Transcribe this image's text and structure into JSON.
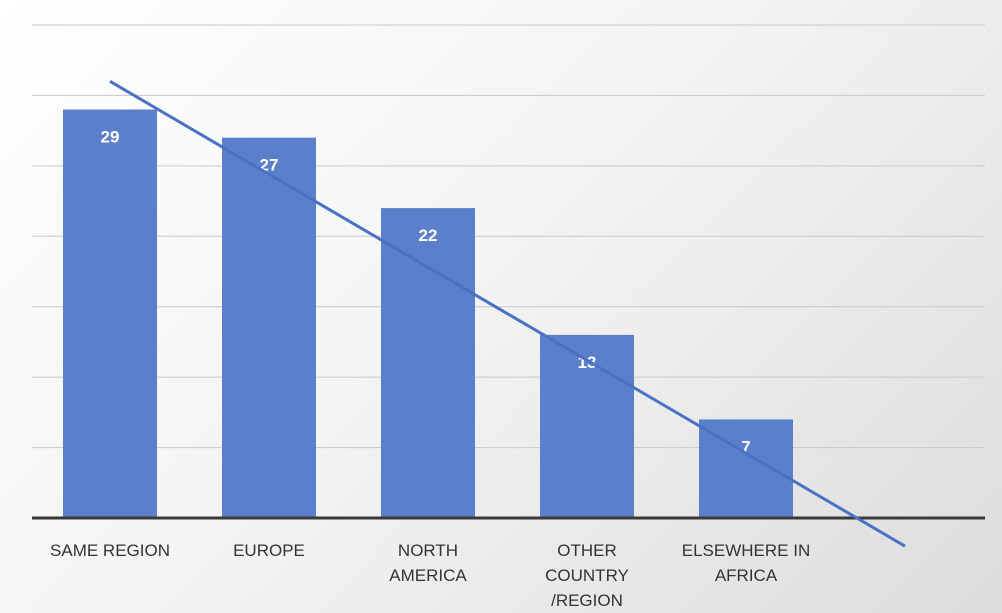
{
  "chart_data": {
    "type": "bar",
    "categories": [
      [
        "SAME REGION"
      ],
      [
        "EUROPE"
      ],
      [
        "NORTH",
        "AMERICA"
      ],
      [
        "OTHER",
        "COUNTRY",
        "/REGION"
      ],
      [
        "ELSEWHERE IN",
        "AFRICA"
      ]
    ],
    "values": [
      29,
      27,
      22,
      13,
      7
    ],
    "ylim": [
      0,
      35
    ],
    "grid": true,
    "legend": "none",
    "trendline": {
      "type": "linear",
      "x": [
        0.0,
        5.0
      ],
      "y": [
        31,
        -2
      ]
    },
    "colors": {
      "bar": "#5b7fcb",
      "trendline": "#4a72c4",
      "axis": "#3a3a3a",
      "grid": "#c8c8c8"
    }
  }
}
